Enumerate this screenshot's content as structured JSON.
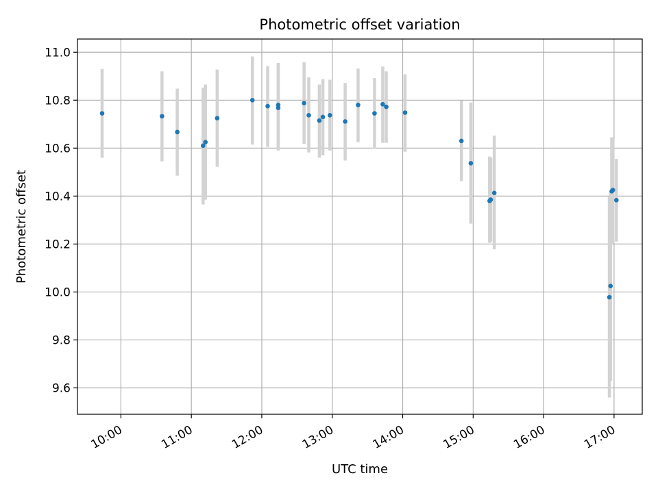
{
  "chart_data": {
    "type": "scatter",
    "title": "Photometric offset variation",
    "xlabel": "UTC time",
    "ylabel": "Photometric offset",
    "x_ticks": [
      "10:00",
      "11:00",
      "12:00",
      "13:00",
      "14:00",
      "15:00",
      "16:00",
      "17:00"
    ],
    "y_ticks": [
      "9.6",
      "9.8",
      "10.0",
      "10.2",
      "10.4",
      "10.6",
      "10.8",
      "11.0"
    ],
    "xlim": [
      "09:23",
      "17:24"
    ],
    "ylim": [
      9.49,
      11.055
    ],
    "grid": true,
    "errorbar_color": "#d3d3d3",
    "point_color": "#1f77b4",
    "points": [
      {
        "x": "09:44",
        "y": 10.745,
        "ylow": 10.56,
        "yhigh": 10.93
      },
      {
        "x": "10:35",
        "y": 10.733,
        "ylow": 10.545,
        "yhigh": 10.92
      },
      {
        "x": "10:48",
        "y": 10.667,
        "ylow": 10.485,
        "yhigh": 10.848
      },
      {
        "x": "11:10",
        "y": 10.61,
        "ylow": 10.365,
        "yhigh": 10.852
      },
      {
        "x": "11:12",
        "y": 10.625,
        "ylow": 10.385,
        "yhigh": 10.865
      },
      {
        "x": "11:22",
        "y": 10.725,
        "ylow": 10.522,
        "yhigh": 10.928
      },
      {
        "x": "11:52",
        "y": 10.8,
        "ylow": 10.615,
        "yhigh": 10.982
      },
      {
        "x": "12:05",
        "y": 10.775,
        "ylow": 10.605,
        "yhigh": 10.942
      },
      {
        "x": "12:14",
        "y": 10.78,
        "ylow": 10.595,
        "yhigh": 10.955
      },
      {
        "x": "12:14",
        "y": 10.768,
        "ylow": 10.59,
        "yhigh": 10.945
      },
      {
        "x": "12:36",
        "y": 10.788,
        "ylow": 10.618,
        "yhigh": 10.958
      },
      {
        "x": "12:40",
        "y": 10.737,
        "ylow": 10.582,
        "yhigh": 10.895
      },
      {
        "x": "12:49",
        "y": 10.715,
        "ylow": 10.56,
        "yhigh": 10.865
      },
      {
        "x": "12:52",
        "y": 10.73,
        "ylow": 10.57,
        "yhigh": 10.888
      },
      {
        "x": "12:58",
        "y": 10.737,
        "ylow": 10.59,
        "yhigh": 10.885
      },
      {
        "x": "13:11",
        "y": 10.711,
        "ylow": 10.548,
        "yhigh": 10.872
      },
      {
        "x": "13:22",
        "y": 10.78,
        "ylow": 10.625,
        "yhigh": 10.932
      },
      {
        "x": "13:36",
        "y": 10.745,
        "ylow": 10.598,
        "yhigh": 10.892
      },
      {
        "x": "13:43",
        "y": 10.783,
        "ylow": 10.622,
        "yhigh": 10.94
      },
      {
        "x": "13:46",
        "y": 10.772,
        "ylow": 10.622,
        "yhigh": 10.92
      },
      {
        "x": "14:02",
        "y": 10.748,
        "ylow": 10.585,
        "yhigh": 10.908
      },
      {
        "x": "14:50",
        "y": 10.63,
        "ylow": 10.462,
        "yhigh": 10.798
      },
      {
        "x": "14:58",
        "y": 10.537,
        "ylow": 10.285,
        "yhigh": 10.79
      },
      {
        "x": "15:14",
        "y": 10.38,
        "ylow": 10.205,
        "yhigh": 10.565
      },
      {
        "x": "15:15",
        "y": 10.385,
        "ylow": 10.21,
        "yhigh": 10.56
      },
      {
        "x": "15:18",
        "y": 10.413,
        "ylow": 10.178,
        "yhigh": 10.652
      },
      {
        "x": "16:56",
        "y": 9.978,
        "ylow": 9.56,
        "yhigh": 10.398
      },
      {
        "x": "16:57",
        "y": 10.025,
        "ylow": 9.63,
        "yhigh": 10.42
      },
      {
        "x": "16:58",
        "y": 10.42,
        "ylow": 10.2,
        "yhigh": 10.645
      },
      {
        "x": "16:59",
        "y": 10.425,
        "ylow": 10.205,
        "yhigh": 10.64
      },
      {
        "x": "17:02",
        "y": 10.383,
        "ylow": 10.21,
        "yhigh": 10.555
      }
    ]
  }
}
